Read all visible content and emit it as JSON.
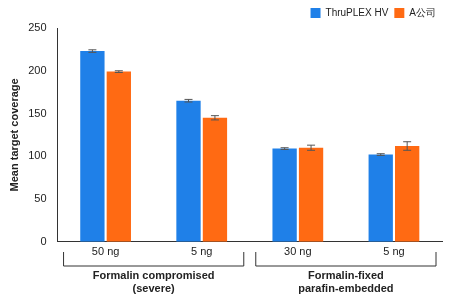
{
  "chart_data": {
    "type": "bar",
    "categories": [
      "50 ng",
      "5 ng",
      "30 ng",
      "5 ng"
    ],
    "groups": [
      {
        "label": [
          "Formalin compromised",
          "(severe)"
        ],
        "count": 2
      },
      {
        "label": [
          "Formalin-fixed",
          "parafin-embedded"
        ],
        "count": 2
      }
    ],
    "y_label": "Mean target coverage",
    "series": [
      {
        "name": "ThruPLEX HV",
        "color": "#1f80e8",
        "values": [
          223,
          165,
          109,
          102
        ],
        "errors": [
          1.5,
          1.5,
          1,
          1
        ]
      },
      {
        "name": "A公司",
        "color": "#ff6a13",
        "values": [
          199,
          145,
          110,
          112
        ],
        "errors": [
          1,
          2.5,
          3,
          5
        ]
      }
    ],
    "ylim": [
      0,
      250
    ],
    "yticks": [
      0,
      50,
      100,
      150,
      200,
      250
    ],
    "grid": false,
    "legend": "top-right"
  }
}
